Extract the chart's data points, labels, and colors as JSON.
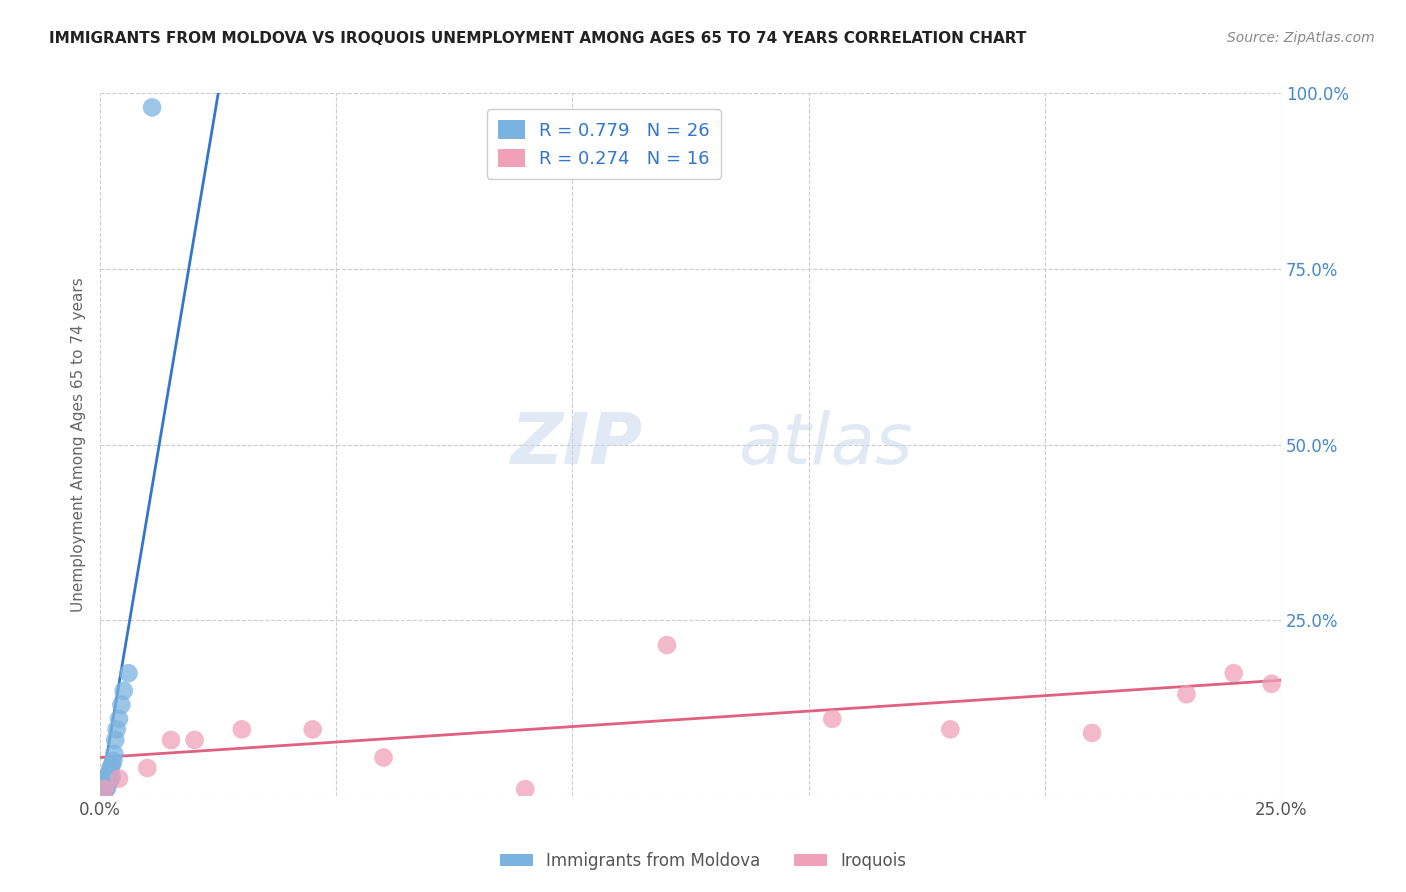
{
  "title": "IMMIGRANTS FROM MOLDOVA VS IROQUOIS UNEMPLOYMENT AMONG AGES 65 TO 74 YEARS CORRELATION CHART",
  "source": "Source: ZipAtlas.com",
  "ylabel": "Unemployment Among Ages 65 to 74 years",
  "xlim": [
    0.0,
    0.25
  ],
  "ylim": [
    0.0,
    1.0
  ],
  "xtick_positions": [
    0.0,
    0.05,
    0.1,
    0.15,
    0.2,
    0.25
  ],
  "xtick_labels": [
    "0.0%",
    "",
    "",
    "",
    "",
    "25.0%"
  ],
  "ytick_positions": [
    0.0,
    0.25,
    0.5,
    0.75,
    1.0
  ],
  "ytick_labels": [
    "",
    "25.0%",
    "50.0%",
    "75.0%",
    "100.0%"
  ],
  "legend_label1": "R = 0.779   N = 26",
  "legend_label2": "R = 0.274   N = 16",
  "bottom_legend_label1": "Immigrants from Moldova",
  "bottom_legend_label2": "Iroquois",
  "series1_color": "#7ab3e0",
  "series2_color": "#f0a0b8",
  "trendline1_color": "#3377cc",
  "trendline2_color": "#e06080",
  "ytick_color": "#4488cc",
  "xtick_color": "#555555",
  "background_color": "#ffffff",
  "grid_color": "#cccccc",
  "watermark_zip": "ZIP",
  "watermark_atlas": "atlas",
  "series1_x": [
    0.0008,
    0.0008,
    0.001,
    0.001,
    0.0012,
    0.0012,
    0.0015,
    0.0015,
    0.0015,
    0.0018,
    0.0018,
    0.002,
    0.002,
    0.0022,
    0.0022,
    0.0025,
    0.0025,
    0.0028,
    0.003,
    0.0032,
    0.0035,
    0.004,
    0.0045,
    0.005,
    0.006,
    0.011
  ],
  "series1_y": [
    0.005,
    0.01,
    0.008,
    0.015,
    0.01,
    0.02,
    0.012,
    0.018,
    0.025,
    0.02,
    0.03,
    0.022,
    0.035,
    0.025,
    0.04,
    0.028,
    0.045,
    0.05,
    0.06,
    0.08,
    0.095,
    0.11,
    0.13,
    0.15,
    0.175,
    0.98
  ],
  "series2_x": [
    0.001,
    0.004,
    0.01,
    0.015,
    0.02,
    0.03,
    0.045,
    0.06,
    0.09,
    0.12,
    0.155,
    0.18,
    0.21,
    0.23,
    0.24,
    0.248
  ],
  "series2_y": [
    0.01,
    0.025,
    0.04,
    0.08,
    0.08,
    0.095,
    0.095,
    0.055,
    0.01,
    0.215,
    0.11,
    0.095,
    0.09,
    0.145,
    0.175,
    0.16
  ],
  "trendline1_x": [
    0.0,
    0.025
  ],
  "trendline1_y": [
    0.0,
    1.0
  ],
  "trendline2_x": [
    0.0,
    0.25
  ],
  "trendline2_y": [
    0.055,
    0.165
  ]
}
